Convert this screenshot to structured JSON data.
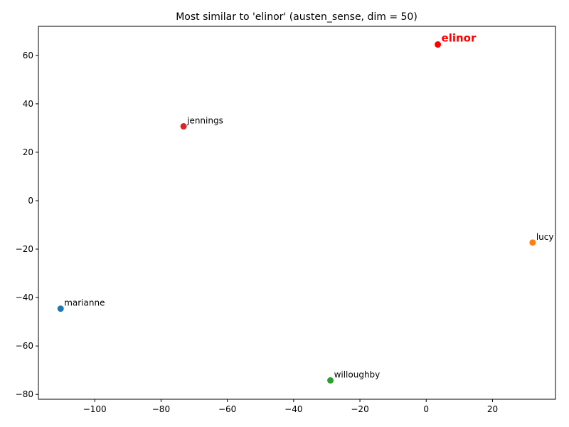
{
  "chart_data": {
    "type": "scatter",
    "title": "Most similar to 'elinor' (austen_sense, dim = 50)",
    "xlabel": "",
    "ylabel": "",
    "xlim": [
      -117,
      39
    ],
    "ylim": [
      -82,
      72
    ],
    "xticks": [
      -100,
      -80,
      -60,
      -40,
      -20,
      0,
      20
    ],
    "yticks": [
      -80,
      -60,
      -40,
      -20,
      0,
      20,
      40,
      60
    ],
    "xtick_labels": [
      "−100",
      "−80",
      "−60",
      "−40",
      "−20",
      "0",
      "20"
    ],
    "ytick_labels": [
      "−80",
      "−60",
      "−40",
      "−20",
      "0",
      "20",
      "40",
      "60"
    ],
    "grid": false,
    "points": [
      {
        "label": "marianne",
        "x": -110.3,
        "y": -44.6,
        "color": "#1f77b4",
        "highlight": false
      },
      {
        "label": "lucy",
        "x": 32.1,
        "y": -17.3,
        "color": "#ff7f0e",
        "highlight": false
      },
      {
        "label": "willoughby",
        "x": -28.9,
        "y": -74.2,
        "color": "#2ca02c",
        "highlight": false
      },
      {
        "label": "jennings",
        "x": -73.2,
        "y": 30.7,
        "color": "#d62728",
        "highlight": false
      },
      {
        "label": "elinor",
        "x": 3.5,
        "y": 64.5,
        "color": "#ff0000",
        "highlight": true
      }
    ]
  }
}
